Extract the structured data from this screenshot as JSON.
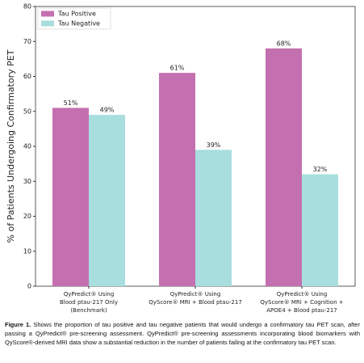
{
  "chart_data": {
    "type": "bar",
    "ylabel": "% of Patients Undergoing Confirmatory PET",
    "categories": [
      "QyPredict® Using\nBlood ptau-217 Only\n(Benchmark)",
      "QyPredict® Using\nQyScore® MRI + Blood ptau-217",
      "QyPredict® Using\nQyScore® MRI + Cognition +\nAPOE4 + Blood ptau-217"
    ],
    "series": [
      {
        "name": "Tau Positive",
        "color": "#c46fb0",
        "values": [
          51,
          61,
          68
        ],
        "value_labels": [
          "51%",
          "61%",
          "68%"
        ]
      },
      {
        "name": "Tau Negative",
        "color": "#a8dedd",
        "values": [
          49,
          39,
          32
        ],
        "value_labels": [
          "49%",
          "39%",
          "32%"
        ]
      }
    ],
    "ylim": [
      0,
      80
    ],
    "yticks": [
      0,
      10,
      20,
      30,
      40,
      50,
      60,
      70,
      80
    ],
    "legend": "upper left"
  },
  "caption": {
    "label": "Figure 1.",
    "text": "Shows the proportion of tau positive and tau negative patients that would undergo a confirmatory tau PET scan, after passing a QyPredict® pre-screening assessment. QyPredict® pre-screening assessments incorporating blood biomarkers with QyScore®-derived MRI data show a substantial reduction in the number of patients failing at the confirmatory tau PET scan."
  }
}
